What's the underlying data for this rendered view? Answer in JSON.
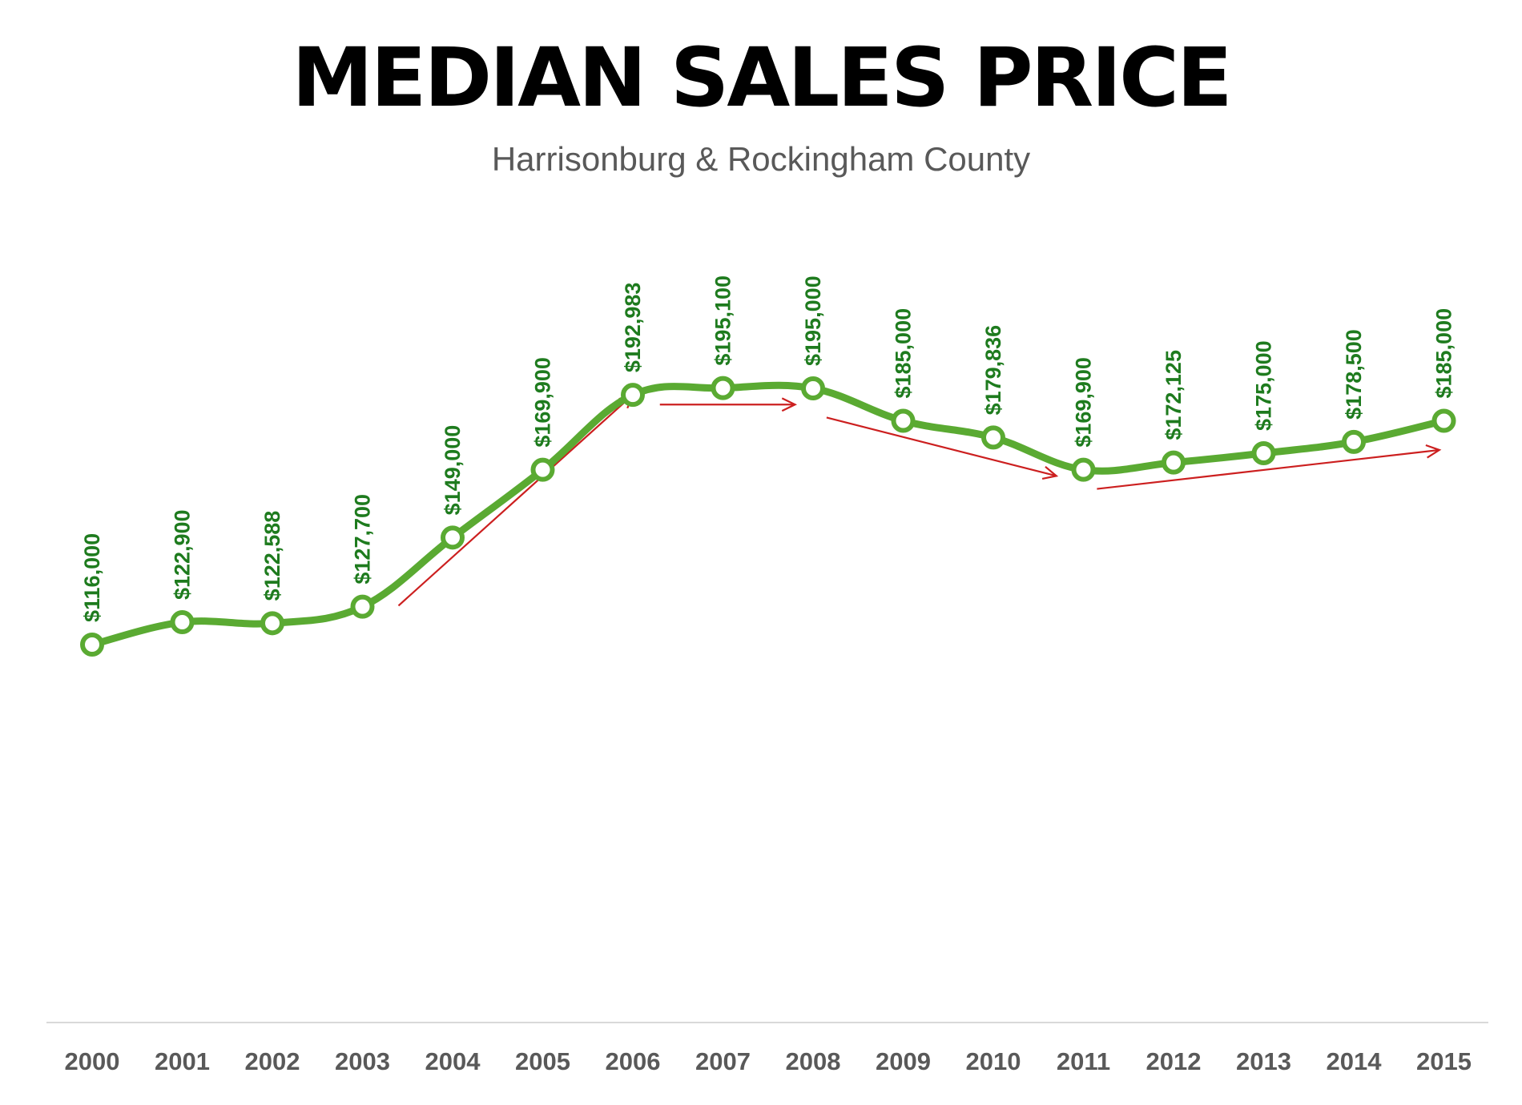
{
  "chart_data": {
    "type": "line",
    "title": "MEDIAN SALES PRICE",
    "subtitle": "Harrisonburg & Rockingham County",
    "xlabel": "",
    "ylabel": "",
    "x": [
      "2000",
      "2001",
      "2002",
      "2003",
      "2004",
      "2005",
      "2006",
      "2007",
      "2008",
      "2009",
      "2010",
      "2011",
      "2012",
      "2013",
      "2014",
      "2015"
    ],
    "series": [
      {
        "values": [
          116000,
          122900,
          122588,
          127700,
          149000,
          169900,
          192983,
          195100,
          195000,
          185000,
          179836,
          169900,
          172125,
          175000,
          178500,
          185000
        ],
        "labels": [
          "$116,000",
          "$122,900",
          "$122,588",
          "$127,700",
          "$149,000",
          "$169,900",
          "$192,983",
          "$195,100",
          "$195,000",
          "$185,000",
          "$179,836",
          "$169,900",
          "$172,125",
          "$175,000",
          "$178,500",
          "$185,000"
        ]
      }
    ],
    "grid": false,
    "legend": "none",
    "colors": {
      "line": "#5aaa32",
      "label": "#1e7b1e",
      "axis_text": "#595959",
      "trend_arrow": "#cc1f1f",
      "axis_line": "#d9d9d9"
    },
    "trend_arrows": [
      {
        "from": [
          "2003.4",
          128000
        ],
        "to": [
          "2006.0",
          193000
        ]
      },
      {
        "from": [
          "2006.3",
          190000
        ],
        "to": [
          "2007.8",
          190000
        ]
      },
      {
        "from": [
          "2008.15",
          186000
        ],
        "to": [
          "2010.7",
          168000
        ]
      },
      {
        "from": [
          "2011.15",
          164000
        ],
        "to": [
          "2014.95",
          176000
        ]
      }
    ]
  }
}
